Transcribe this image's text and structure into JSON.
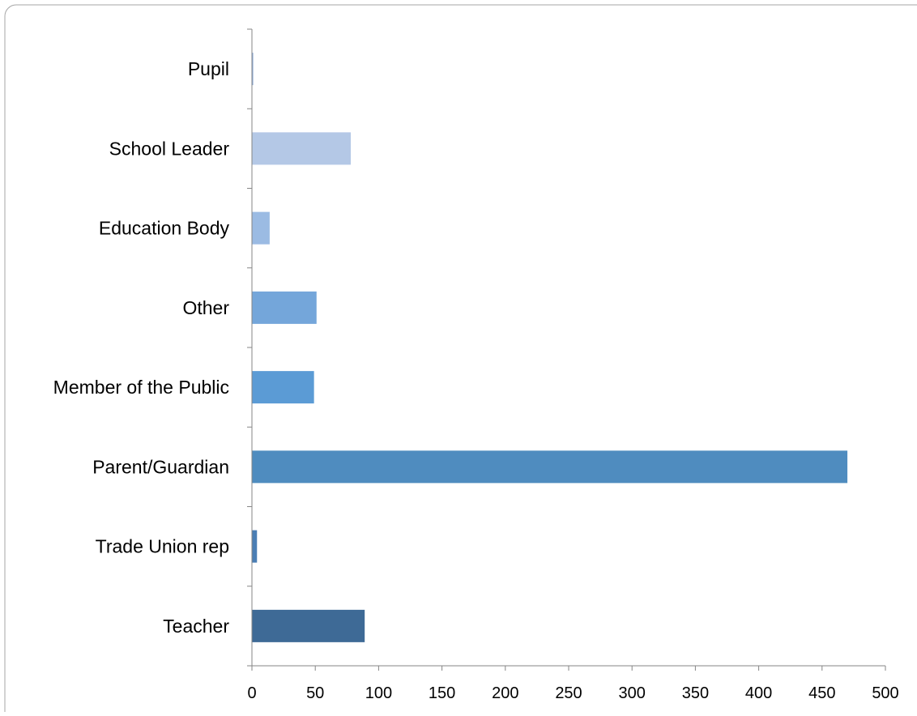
{
  "chart_data": {
    "type": "bar",
    "orientation": "horizontal",
    "title": "",
    "xlabel": "",
    "ylabel": "",
    "categories": [
      "Pupil",
      "School Leader",
      "Education Body",
      "Other",
      "Member of the Public",
      "Parent/Guardian",
      "Trade Union rep",
      "Teacher"
    ],
    "values": [
      1,
      78,
      14,
      51,
      49,
      470,
      4,
      89
    ],
    "colors": [
      "#8CAAD6",
      "#B4C8E6",
      "#9BBBE3",
      "#74A6DA",
      "#5B9BD5",
      "#4F8CBF",
      "#4A7EB4",
      "#3E6A96"
    ],
    "xlim": [
      0,
      500
    ],
    "xticks": [
      0,
      50,
      100,
      150,
      200,
      250,
      300,
      350,
      400,
      450,
      500
    ],
    "grid": false,
    "legend": "none"
  }
}
